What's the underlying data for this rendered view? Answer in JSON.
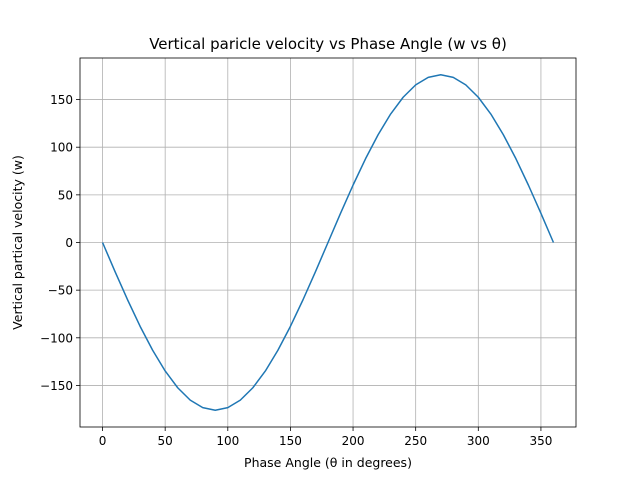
{
  "chart_data": {
    "type": "line",
    "title": "Vertical paricle velocity vs Phase Angle (w vs θ)",
    "xlabel": "Phase Angle (θ in degrees)",
    "ylabel": "Vertical partical velocity (w)",
    "xlim": [
      -18,
      378
    ],
    "ylim": [
      -193.6,
      193.6
    ],
    "xticks": [
      0,
      50,
      100,
      150,
      200,
      250,
      300,
      350
    ],
    "yticks": [
      -150,
      -100,
      -50,
      0,
      50,
      100,
      150
    ],
    "xtick_labels": [
      "0",
      "50",
      "100",
      "150",
      "200",
      "250",
      "300",
      "350"
    ],
    "ytick_labels": [
      "−150",
      "−100",
      "−50",
      "0",
      "50",
      "100",
      "150"
    ],
    "grid": true,
    "series": [
      {
        "color": "#1f77b4",
        "x": [
          0,
          10,
          20,
          30,
          40,
          50,
          60,
          70,
          80,
          90,
          100,
          110,
          120,
          130,
          140,
          150,
          160,
          170,
          180,
          190,
          200,
          210,
          220,
          230,
          240,
          250,
          260,
          270,
          280,
          290,
          300,
          310,
          320,
          330,
          340,
          350,
          360
        ],
        "y": [
          0,
          -30.6,
          -60.2,
          -88.0,
          -113.1,
          -134.8,
          -152.4,
          -165.4,
          -173.3,
          -176.0,
          -173.3,
          -165.4,
          -152.4,
          -134.8,
          -113.1,
          -88.0,
          -60.2,
          -30.6,
          0,
          30.6,
          60.2,
          88.0,
          113.1,
          134.8,
          152.4,
          165.4,
          173.3,
          176.0,
          173.3,
          165.4,
          152.4,
          134.8,
          113.1,
          88.0,
          60.2,
          30.6,
          0
        ]
      }
    ]
  }
}
